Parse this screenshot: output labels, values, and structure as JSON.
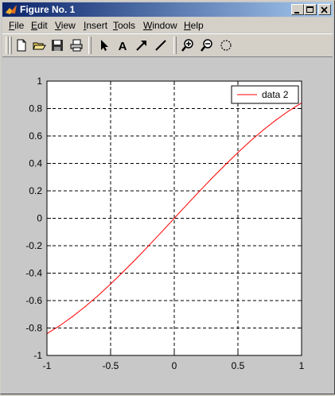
{
  "window": {
    "title": "Figure No. 1",
    "title_icon": "matlab-logo-icon"
  },
  "menubar": {
    "items": [
      {
        "mnemonic": "F",
        "rest": "ile"
      },
      {
        "mnemonic": "E",
        "rest": "dit"
      },
      {
        "mnemonic": "V",
        "rest": "iew"
      },
      {
        "mnemonic": "I",
        "rest": "nsert"
      },
      {
        "mnemonic": "T",
        "rest": "ools"
      },
      {
        "mnemonic": "W",
        "rest": "indow"
      },
      {
        "mnemonic": "H",
        "rest": "elp"
      }
    ]
  },
  "toolbar": {
    "icons": [
      "new-file-icon",
      "open-folder-icon",
      "save-icon",
      "print-icon",
      "select-arrow-icon",
      "insert-text-icon",
      "insert-arrow-icon",
      "insert-line-icon",
      "zoom-in-icon",
      "zoom-out-icon",
      "rotate-3d-icon"
    ],
    "text_tool_glyph": "A"
  },
  "chart_data": {
    "type": "line",
    "title": "",
    "xlabel": "",
    "ylabel": "",
    "xlim": [
      -1,
      1
    ],
    "ylim": [
      -1,
      1
    ],
    "xticks": [
      -1,
      -0.5,
      0,
      0.5,
      1
    ],
    "yticks": [
      -1,
      -0.8,
      -0.6,
      -0.4,
      -0.2,
      0,
      0.2,
      0.4,
      0.6,
      0.8,
      1
    ],
    "x_tick_labels": [
      "-1",
      "-0.5",
      "0",
      "0.5",
      "1"
    ],
    "y_tick_labels": [
      "-1",
      "-0.8",
      "-0.6",
      "-0.4",
      "-0.2",
      "0",
      "0.2",
      "0.4",
      "0.6",
      "0.8",
      "1"
    ],
    "grid": true,
    "legend_position": "top-right",
    "series": [
      {
        "name": "data 2",
        "color": "#ff0000",
        "x": [
          -1,
          -0.9,
          -0.8,
          -0.7,
          -0.6,
          -0.5,
          -0.4,
          -0.3,
          -0.2,
          -0.1,
          0,
          0.1,
          0.2,
          0.3,
          0.4,
          0.5,
          0.6,
          0.7,
          0.8,
          0.9,
          1
        ],
        "y": [
          -0.841,
          -0.783,
          -0.717,
          -0.644,
          -0.565,
          -0.479,
          -0.389,
          -0.296,
          -0.199,
          -0.1,
          0,
          0.1,
          0.199,
          0.296,
          0.389,
          0.479,
          0.565,
          0.644,
          0.717,
          0.783,
          0.841
        ]
      }
    ]
  }
}
